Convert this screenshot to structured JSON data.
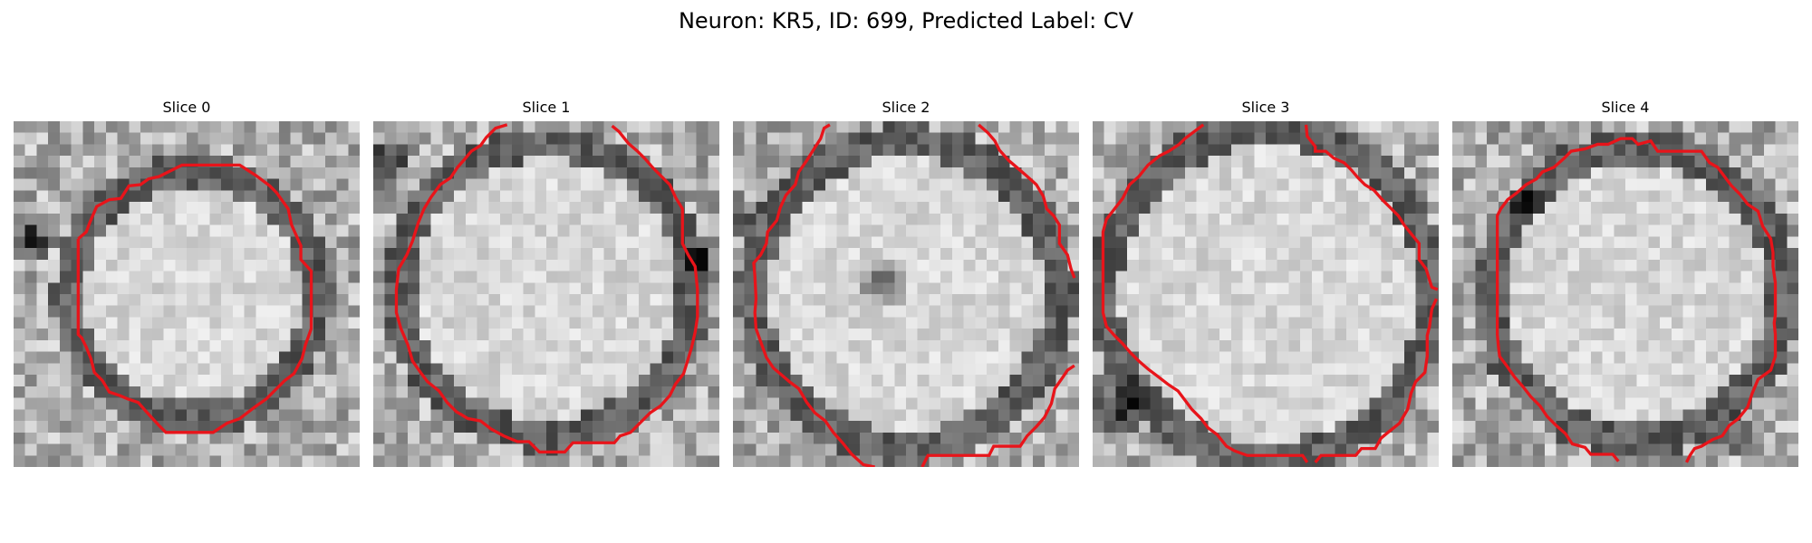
{
  "figure": {
    "title": "Neuron: KR5, ID: 699, Predicted Label: CV"
  },
  "colors": {
    "contour": "#e8141a",
    "background": "#ffffff"
  },
  "panels": [
    {
      "title": "Slice 0",
      "seed": 11
    },
    {
      "title": "Slice 1",
      "seed": 23
    },
    {
      "title": "Slice 2",
      "seed": 37
    },
    {
      "title": "Slice 3",
      "seed": 51
    },
    {
      "title": "Slice 4",
      "seed": 67
    }
  ]
}
